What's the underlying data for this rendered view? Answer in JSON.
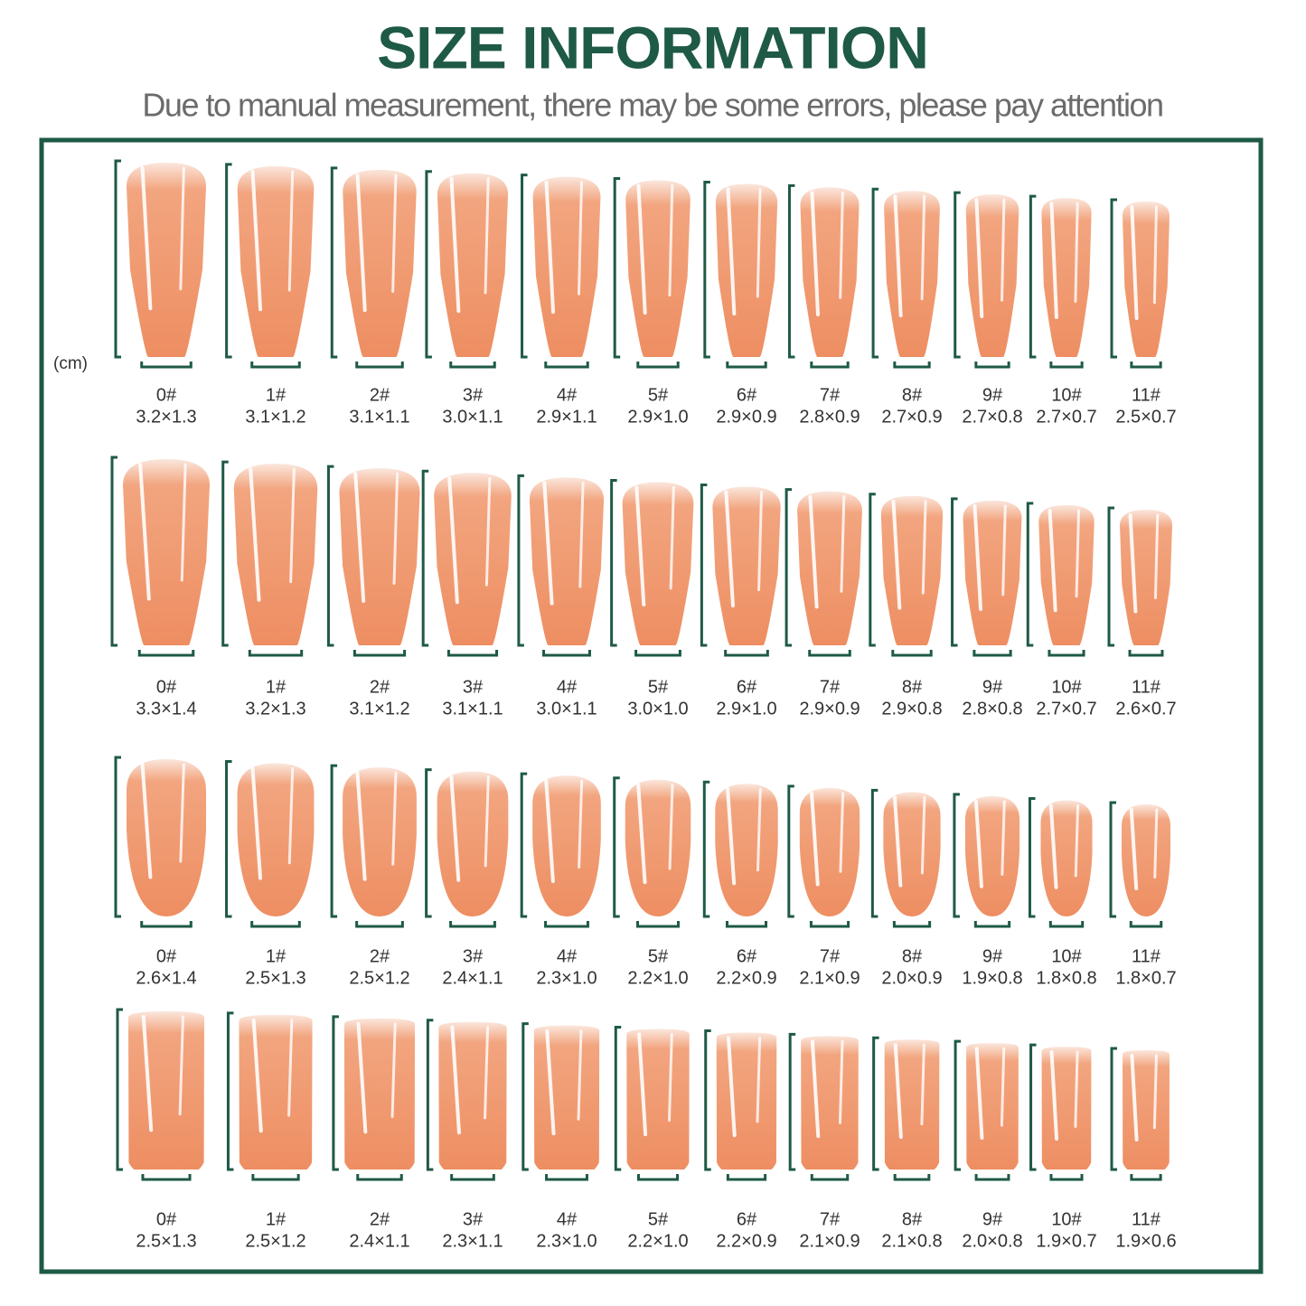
{
  "header": {
    "title": "SIZE INFORMATION",
    "subtitle": "Due to manual measurement, there may be some errors, please pay attention"
  },
  "unit": "(cm)",
  "rows": [
    {
      "items": [
        {
          "label": "0#",
          "size": "3.2×1.3"
        },
        {
          "label": "1#",
          "size": "3.1×1.2"
        },
        {
          "label": "2#",
          "size": "3.1×1.1"
        },
        {
          "label": "3#",
          "size": "3.0×1.1"
        },
        {
          "label": "4#",
          "size": "2.9×1.1"
        },
        {
          "label": "5#",
          "size": "2.9×1.0"
        },
        {
          "label": "6#",
          "size": "2.9×0.9"
        },
        {
          "label": "7#",
          "size": "2.8×0.9"
        },
        {
          "label": "8#",
          "size": "2.7×0.9"
        },
        {
          "label": "9#",
          "size": "2.7×0.8"
        },
        {
          "label": "10#",
          "size": "2.7×0.7"
        },
        {
          "label": "11#",
          "size": "2.5×0.7"
        }
      ]
    },
    {
      "items": [
        {
          "label": "0#",
          "size": "3.3×1.4"
        },
        {
          "label": "1#",
          "size": "3.2×1.3"
        },
        {
          "label": "2#",
          "size": "3.1×1.2"
        },
        {
          "label": "3#",
          "size": "3.1×1.1"
        },
        {
          "label": "4#",
          "size": "3.0×1.1"
        },
        {
          "label": "5#",
          "size": "3.0×1.0"
        },
        {
          "label": "6#",
          "size": "2.9×1.0"
        },
        {
          "label": "7#",
          "size": "2.9×0.9"
        },
        {
          "label": "8#",
          "size": "2.9×0.8"
        },
        {
          "label": "9#",
          "size": "2.8×0.8"
        },
        {
          "label": "10#",
          "size": "2.7×0.7"
        },
        {
          "label": "11#",
          "size": "2.6×0.7"
        }
      ]
    },
    {
      "items": [
        {
          "label": "0#",
          "size": "2.6×1.4"
        },
        {
          "label": "1#",
          "size": "2.5×1.3"
        },
        {
          "label": "2#",
          "size": "2.5×1.2"
        },
        {
          "label": "3#",
          "size": "2.4×1.1"
        },
        {
          "label": "4#",
          "size": "2.3×1.0"
        },
        {
          "label": "5#",
          "size": "2.2×1.0"
        },
        {
          "label": "6#",
          "size": "2.2×0.9"
        },
        {
          "label": "7#",
          "size": "2.1×0.9"
        },
        {
          "label": "8#",
          "size": "2.0×0.9"
        },
        {
          "label": "9#",
          "size": "1.9×0.8"
        },
        {
          "label": "10#",
          "size": "1.8×0.8"
        },
        {
          "label": "11#",
          "size": "1.8×0.7"
        }
      ]
    },
    {
      "items": [
        {
          "label": "0#",
          "size": "2.5×1.3"
        },
        {
          "label": "1#",
          "size": "2.5×1.2"
        },
        {
          "label": "2#",
          "size": "2.4×1.1"
        },
        {
          "label": "3#",
          "size": "2.3×1.1"
        },
        {
          "label": "4#",
          "size": "2.3×1.0"
        },
        {
          "label": "5#",
          "size": "2.2×1.0"
        },
        {
          "label": "6#",
          "size": "2.2×0.9"
        },
        {
          "label": "7#",
          "size": "2.1×0.9"
        },
        {
          "label": "8#",
          "size": "2.1×0.8"
        },
        {
          "label": "9#",
          "size": "2.0×0.8"
        },
        {
          "label": "10#",
          "size": "1.9×0.7"
        },
        {
          "label": "11#",
          "size": "1.9×0.6"
        }
      ]
    }
  ]
}
